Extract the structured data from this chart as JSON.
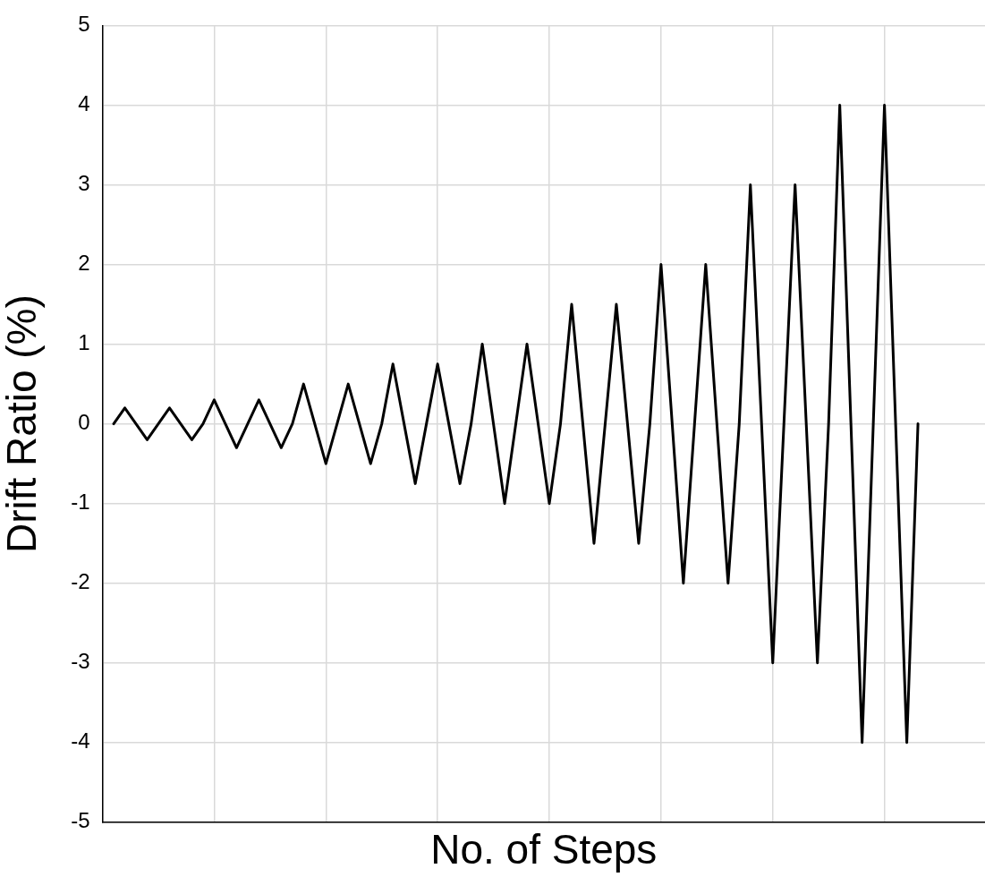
{
  "chart_data": {
    "type": "line",
    "xlabel": "No. of Steps",
    "ylabel": "Drift Ratio (%)",
    "categories": [
      null,
      null,
      null,
      null,
      null,
      null,
      null,
      null,
      null,
      null,
      null,
      null,
      null,
      null,
      null,
      null,
      null,
      null,
      null,
      null,
      null,
      null,
      null,
      null,
      null,
      null,
      null,
      null,
      null,
      null,
      null,
      null,
      null,
      null,
      null,
      null,
      null,
      null,
      null,
      null,
      null,
      null,
      null,
      null,
      null,
      null,
      null,
      null,
      null,
      null,
      null,
      null,
      null,
      null,
      null,
      null,
      null,
      null,
      null,
      null,
      null,
      null,
      null,
      null,
      null,
      null,
      null,
      null,
      null,
      null,
      null,
      null,
      null,
      null,
      null,
      null,
      null,
      null,
      null,
      null
    ],
    "series": [
      {
        "color": "#000000",
        "values": [
          null,
          0,
          0.2,
          0,
          -0.2,
          0,
          0.2,
          0,
          -0.2,
          0,
          0.3,
          0,
          -0.3,
          0,
          0.3,
          0,
          -0.3,
          0,
          0.5,
          0,
          -0.5,
          0,
          0.5,
          0,
          -0.5,
          0,
          0.75,
          0,
          -0.75,
          0,
          0.75,
          0,
          -0.75,
          0,
          1,
          0,
          -1,
          0,
          1,
          0,
          -1,
          0,
          1.5,
          0,
          -1.5,
          0,
          1.5,
          0,
          -1.5,
          0,
          2,
          0,
          -2,
          0,
          2,
          0,
          -2,
          0,
          3,
          0,
          -3,
          0,
          3,
          0,
          -3,
          0,
          4,
          0,
          -4,
          0,
          4,
          0,
          -4,
          0,
          null,
          null,
          null,
          null,
          null,
          null
        ]
      }
    ],
    "ylim": [
      -5,
      5
    ],
    "yticks": [
      -5,
      -4,
      -3,
      -2,
      -1,
      0,
      1,
      2,
      3,
      4,
      5
    ],
    "grid": true,
    "legend": false,
    "tick_labels": "y",
    "marker": "none",
    "line_style": "solid"
  }
}
